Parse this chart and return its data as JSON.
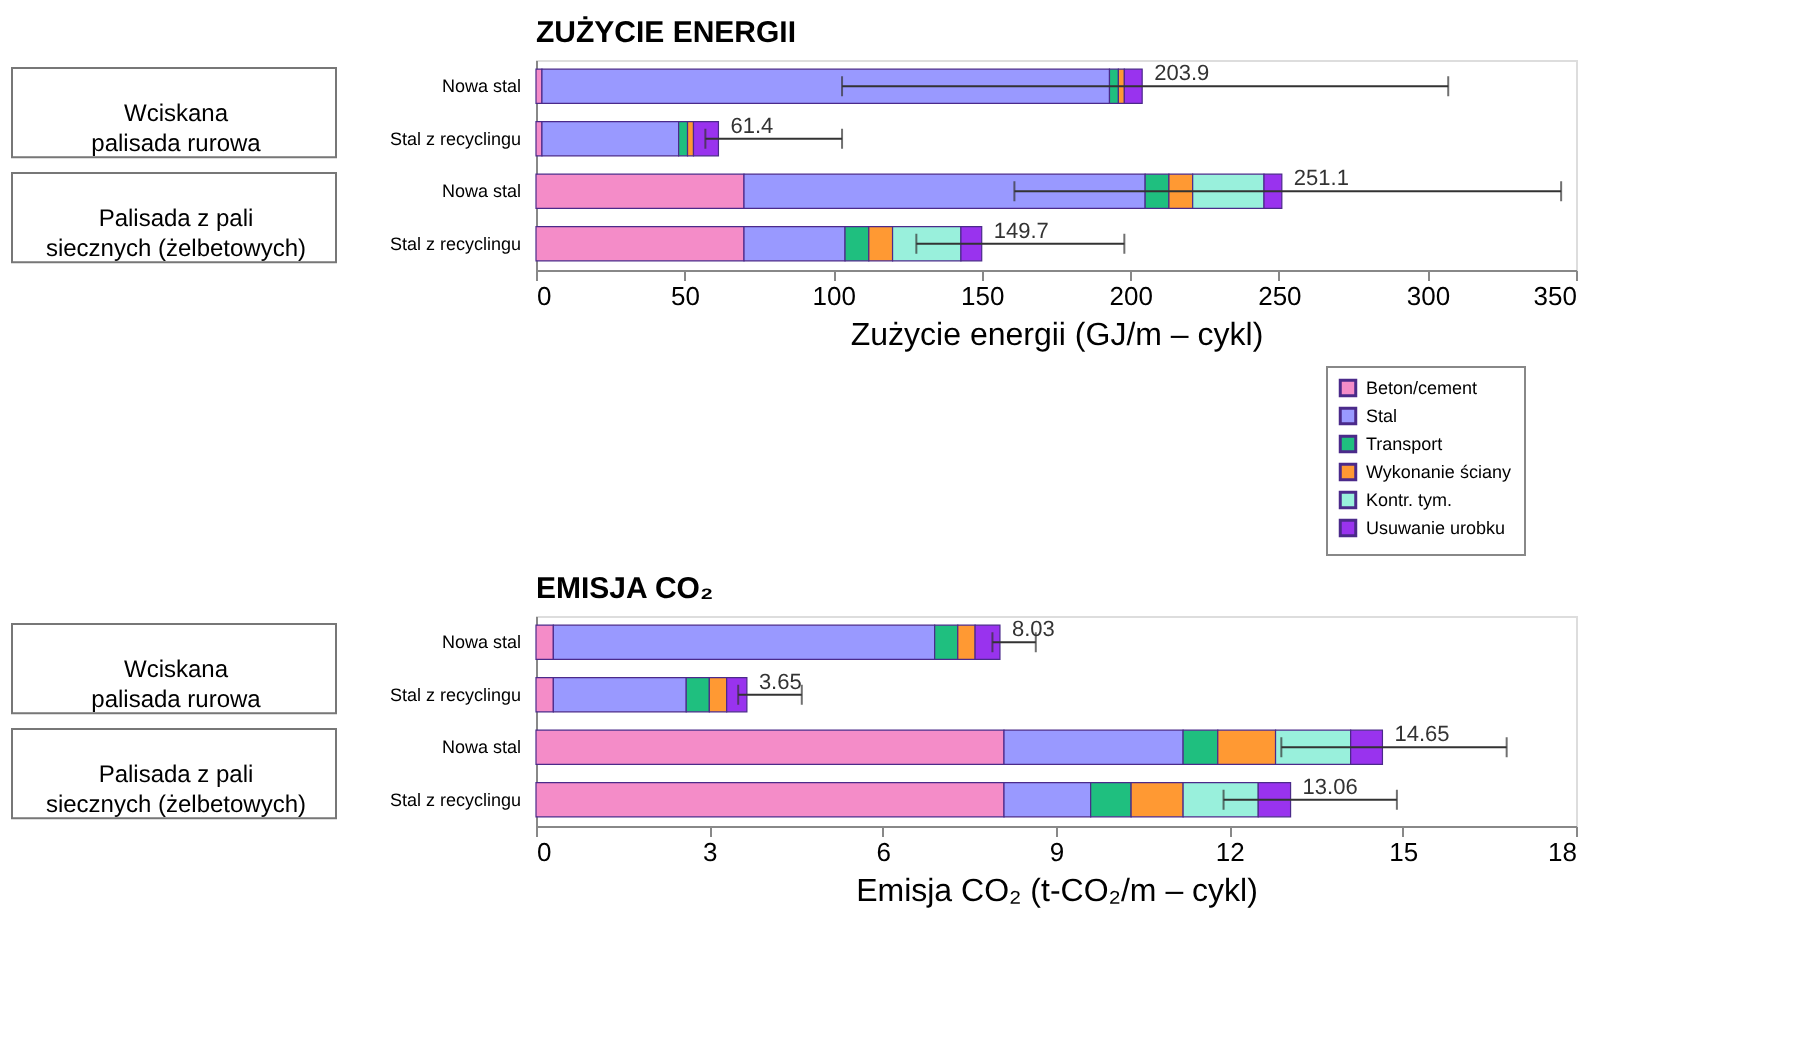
{
  "chart_data": [
    {
      "type": "bar",
      "orientation": "horizontal",
      "stacked": true,
      "title": "ZUŻYCIE ENERGII",
      "xlabel": "Zużycie energii (GJ/m – cykl)",
      "categories": [
        "Nowa stal",
        "Stal z recyclingu",
        "Nowa stal",
        "Stal z recyclingu"
      ],
      "annotations": [
        "Wciskana palisada rurowa",
        "Palisada z pali siecznych (żelbetowych)"
      ],
      "series": [
        {
          "name": "Beton/cement",
          "color": "#f48cc8",
          "values": [
            2,
            2,
            70,
            70
          ]
        },
        {
          "name": "Stal",
          "color": "#9999ff",
          "values": [
            191,
            46,
            135,
            34
          ]
        },
        {
          "name": "Transport",
          "color": "#1fbf7f",
          "values": [
            3,
            3,
            8,
            8
          ]
        },
        {
          "name": "Wykonanie ściany",
          "color": "#ff9933",
          "values": [
            2,
            2,
            8,
            8
          ]
        },
        {
          "name": "Kontr. tym.",
          "color": "#99f0dc",
          "values": [
            null,
            null,
            24,
            23
          ]
        },
        {
          "name": "Usuwanie urobku",
          "color": "#9933ee",
          "values": [
            6,
            8.4,
            6,
            7
          ],
          "errors": [
            [
              103,
              307
            ],
            [
              57,
              103
            ],
            [
              161,
              345
            ],
            [
              128,
              198
            ]
          ]
        }
      ],
      "totals": [
        "203.9",
        "61.4",
        "251.1",
        "149.7"
      ],
      "xlim": [
        0,
        350
      ],
      "xticks": [
        0,
        50,
        100,
        150,
        200,
        250,
        300,
        350
      ],
      "grid": false,
      "legend": "bottom right"
    },
    {
      "type": "bar",
      "orientation": "horizontal",
      "stacked": true,
      "title": "EMISJA CO₂",
      "xlabel": "Emisja CO₂ (t-CO₂/m – cykl)",
      "categories": [
        "Nowa stal",
        "Stal z recyclingu",
        "Nowa stal",
        "Stal z recyclingu"
      ],
      "annotations": [
        "Wciskana palisada rurowa",
        "Palisada z pali siecznych (żelbetowych)"
      ],
      "series": [
        {
          "color": "#f48cc8",
          "values": [
            0.3,
            0.3,
            8.1,
            8.1
          ]
        },
        {
          "color": "#9999ff",
          "values": [
            6.6,
            2.3,
            3.1,
            1.5
          ]
        },
        {
          "color": "#1fbf7f",
          "values": [
            0.4,
            0.4,
            0.6,
            0.7
          ]
        },
        {
          "color": "#ff9933",
          "values": [
            0.3,
            0.3,
            1.0,
            0.9
          ]
        },
        {
          "color": "#99f0dc",
          "values": [
            null,
            null,
            1.3,
            1.3
          ]
        },
        {
          "color": "#9933ee",
          "values": [
            0.43,
            0.35,
            0.55,
            0.56
          ],
          "errors": [
            [
              7.9,
              8.65
            ],
            [
              3.5,
              4.6
            ],
            [
              12.9,
              16.8
            ],
            [
              11.9,
              14.9
            ]
          ]
        }
      ],
      "totals": [
        "8.03",
        "3.65",
        "14.65",
        "13.06"
      ],
      "xlim": [
        0,
        18
      ],
      "xticks": [
        0,
        3,
        6,
        9,
        12,
        15,
        18
      ],
      "grid": false,
      "legend": false
    }
  ]
}
